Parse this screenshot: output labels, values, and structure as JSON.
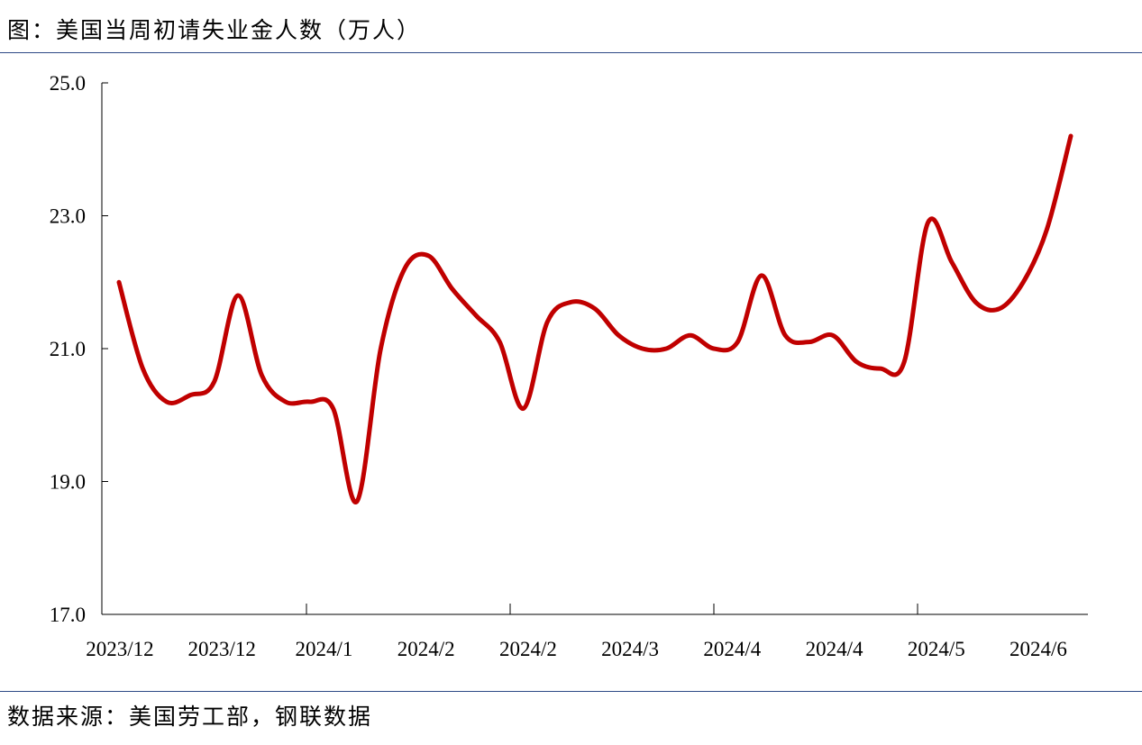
{
  "title": "图：美国当周初请失业金人数（万人）",
  "source": "数据来源：美国劳工部，钢联数据",
  "chart_data": {
    "type": "line",
    "title": "图：美国当周初请失业金人数（万人）",
    "xlabel": "",
    "ylabel": "",
    "ylim": [
      17.0,
      25.0
    ],
    "yticks": [
      "17.0",
      "19.0",
      "21.0",
      "23.0",
      "25.0"
    ],
    "xtick_labels": [
      "2023/12",
      "2023/12",
      "2024/1",
      "2024/2",
      "2024/2",
      "2024/3",
      "2024/4",
      "2024/4",
      "2024/5",
      "2024/6"
    ],
    "grid": false,
    "legend": "none",
    "line_color": "#c00000",
    "series": [
      {
        "values": [
          22.0,
          20.7,
          20.2,
          20.3,
          20.5,
          21.8,
          20.6,
          20.2,
          20.2,
          20.1,
          18.7,
          21.0,
          22.2,
          22.4,
          21.9,
          21.5,
          21.1,
          20.1,
          21.4,
          21.7,
          21.6,
          21.2,
          21.0,
          21.0,
          21.2,
          21.0,
          21.1,
          22.1,
          21.2,
          21.1,
          21.2,
          20.8,
          20.7,
          20.8,
          22.9,
          22.3,
          21.7,
          21.6,
          22.0,
          22.8,
          24.2
        ]
      }
    ]
  }
}
